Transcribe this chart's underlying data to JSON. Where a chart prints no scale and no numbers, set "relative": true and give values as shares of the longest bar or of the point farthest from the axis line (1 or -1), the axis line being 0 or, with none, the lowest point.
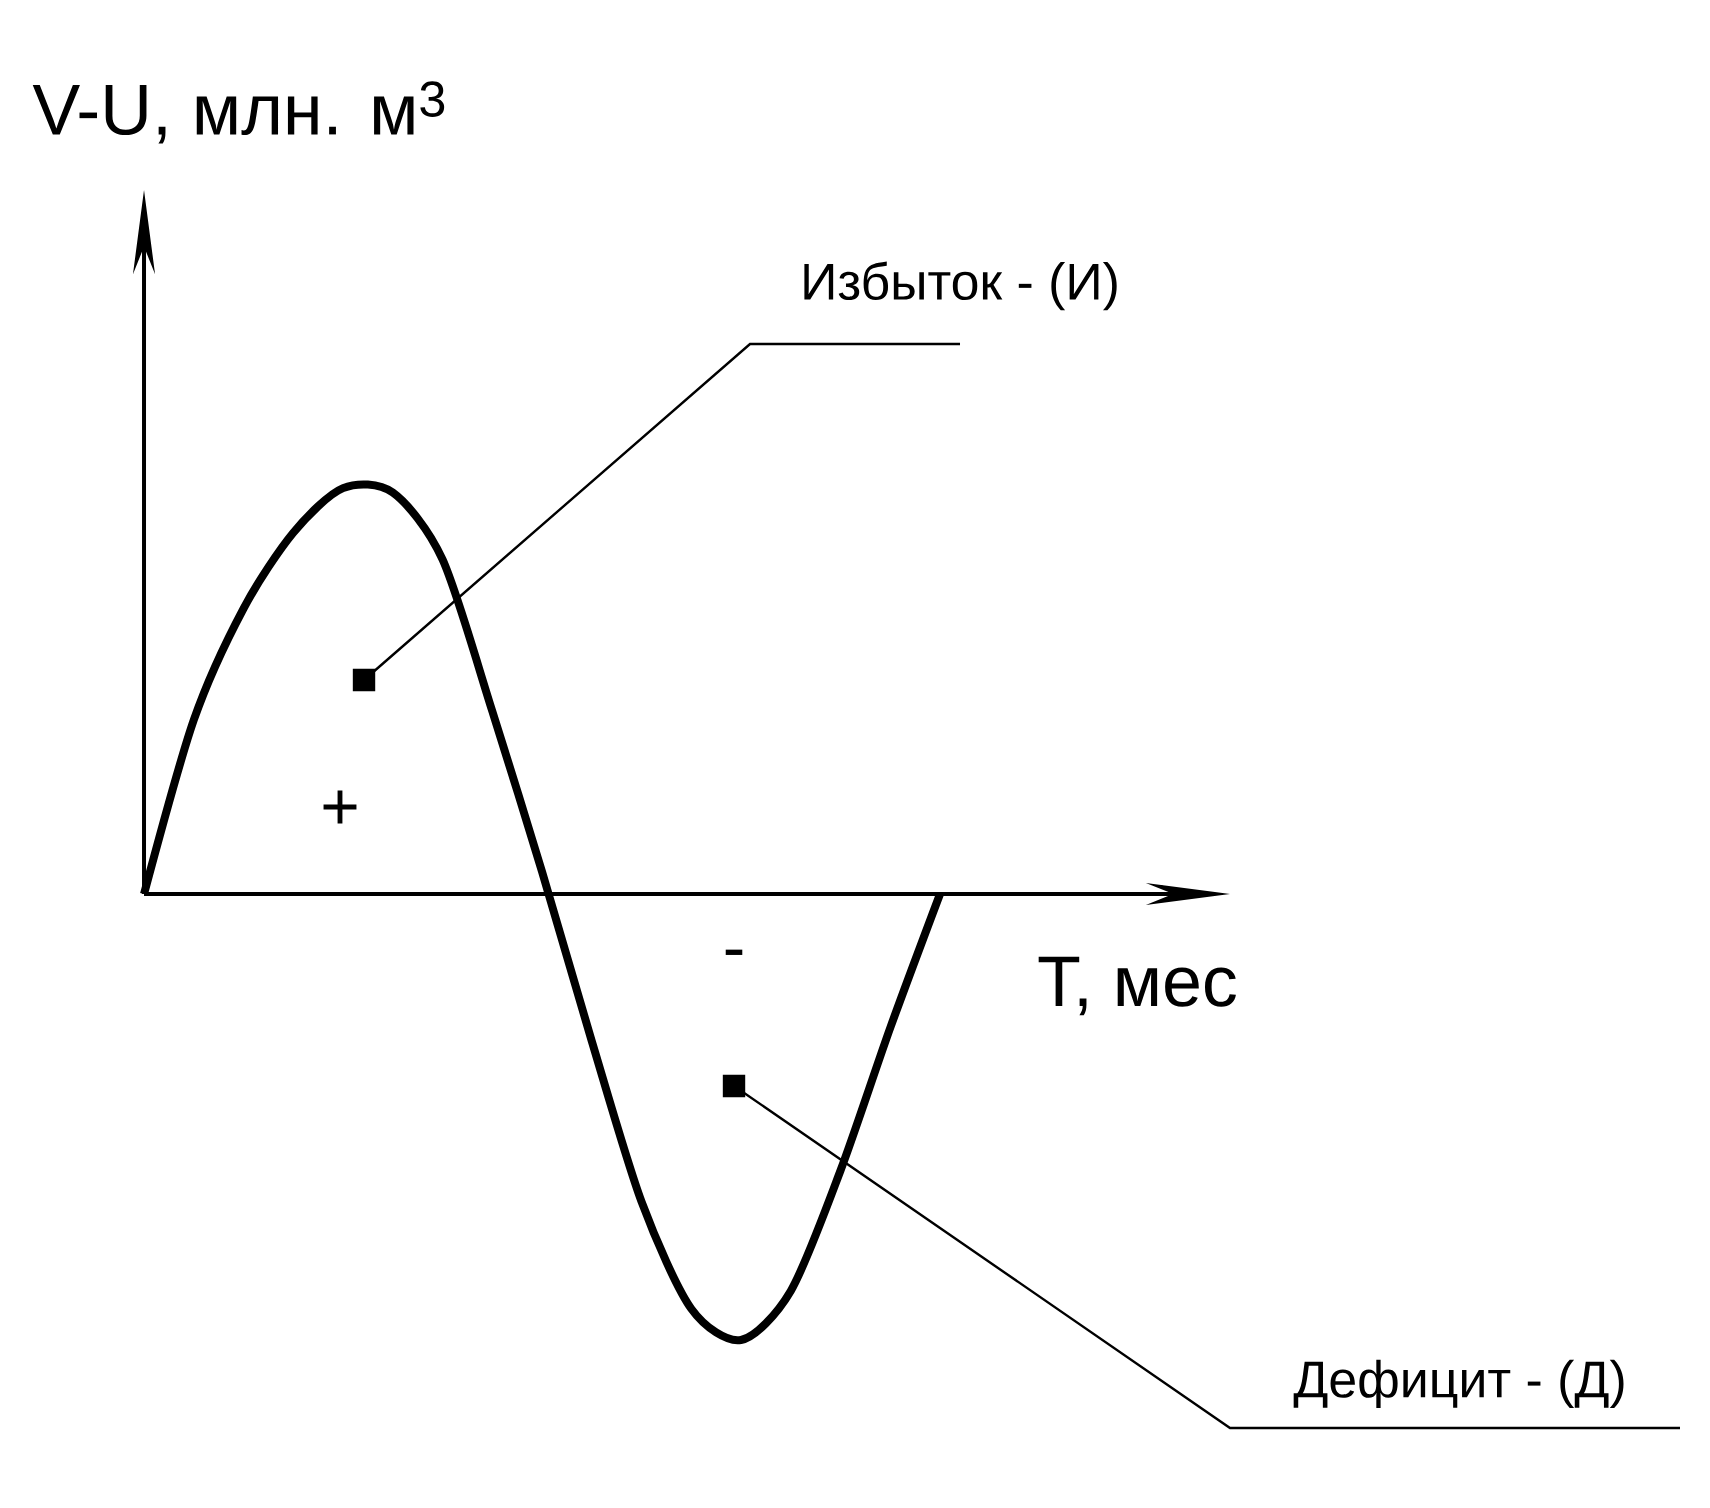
{
  "chart_data": {
    "type": "line",
    "relative": true,
    "xlabel": "T, мес",
    "ylabel": "V-U, млн. м$^{3}$",
    "color": "#000000",
    "marker": "none",
    "line_style": "solid",
    "categories": [
      null,
      null,
      null,
      null,
      null,
      null,
      null,
      null,
      null,
      null,
      null,
      null,
      null,
      null,
      null,
      null,
      null
    ],
    "values": [
      0,
      0.39,
      0.64,
      0.81,
      0.91,
      0.9,
      0.75,
      0.41,
      0.05,
      -0.33,
      -0.69,
      -0.93,
      -1,
      -0.89,
      -0.62,
      -0.3,
      0
    ],
    "annotations": [
      "Избыток - (И)",
      "+",
      "-",
      "Дефицит - (Д)"
    ]
  }
}
